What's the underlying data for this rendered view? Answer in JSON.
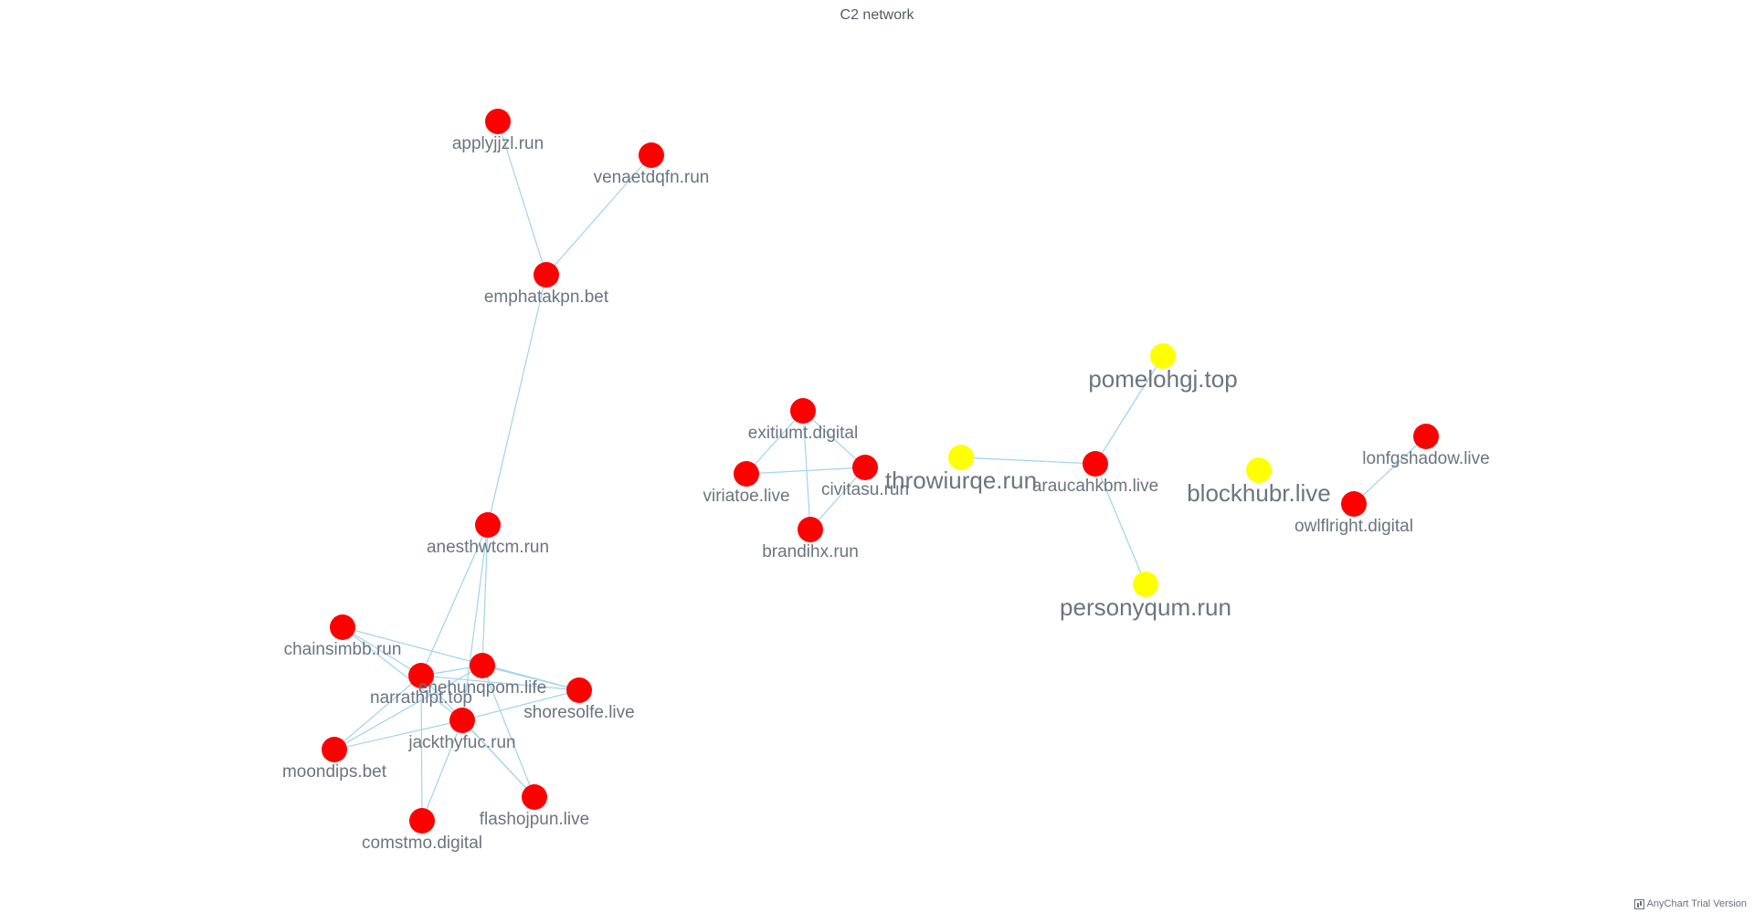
{
  "title": "C2 network",
  "credit": "AnyChart Trial Version",
  "colors": {
    "edge": "#9fd3f0",
    "node_red": "#ff0000",
    "node_yellow": "#ffff00",
    "label": "#6b7480"
  },
  "nodes": [
    {
      "id": "applyjjzl.run",
      "color": "red"
    },
    {
      "id": "venaetdqfn.run",
      "color": "red"
    },
    {
      "id": "emphatakpn.bet",
      "color": "red"
    },
    {
      "id": "anesthwtcm.run",
      "color": "red"
    },
    {
      "id": "chainsimbb.run",
      "color": "red"
    },
    {
      "id": "narrathlpt.top",
      "color": "red"
    },
    {
      "id": "enehunqpom.life",
      "color": "red"
    },
    {
      "id": "shoresolfe.live",
      "color": "red"
    },
    {
      "id": "jackthyfuc.run",
      "color": "red"
    },
    {
      "id": "moondips.bet",
      "color": "red"
    },
    {
      "id": "comstmo.digital",
      "color": "red"
    },
    {
      "id": "flashojpun.live",
      "color": "red"
    },
    {
      "id": "exitiumt.digital",
      "color": "red"
    },
    {
      "id": "viriatoe.live",
      "color": "red"
    },
    {
      "id": "civitasu.run",
      "color": "red"
    },
    {
      "id": "brandihx.run",
      "color": "red"
    },
    {
      "id": "throwiurqe.run",
      "color": "yellow"
    },
    {
      "id": "araucahkbm.live",
      "color": "red"
    },
    {
      "id": "pomelohgj.top",
      "color": "yellow"
    },
    {
      "id": "personyqum.run",
      "color": "yellow"
    },
    {
      "id": "blockhubr.live",
      "color": "yellow"
    },
    {
      "id": "lonfgshadow.live",
      "color": "red"
    },
    {
      "id": "owlflright.digital",
      "color": "red"
    }
  ],
  "edges": [
    [
      "applyjjzl.run",
      "emphatakpn.bet"
    ],
    [
      "venaetdqfn.run",
      "emphatakpn.bet"
    ],
    [
      "emphatakpn.bet",
      "anesthwtcm.run"
    ],
    [
      "anesthwtcm.run",
      "narrathlpt.top"
    ],
    [
      "anesthwtcm.run",
      "enehunqpom.life"
    ],
    [
      "anesthwtcm.run",
      "jackthyfuc.run"
    ],
    [
      "chainsimbb.run",
      "narrathlpt.top"
    ],
    [
      "chainsimbb.run",
      "jackthyfuc.run"
    ],
    [
      "chainsimbb.run",
      "shoresolfe.live"
    ],
    [
      "narrathlpt.top",
      "enehunqpom.life"
    ],
    [
      "narrathlpt.top",
      "shoresolfe.live"
    ],
    [
      "narrathlpt.top",
      "moondips.bet"
    ],
    [
      "narrathlpt.top",
      "comstmo.digital"
    ],
    [
      "narrathlpt.top",
      "flashojpun.live"
    ],
    [
      "enehunqpom.life",
      "shoresolfe.live"
    ],
    [
      "enehunqpom.life",
      "moondips.bet"
    ],
    [
      "enehunqpom.life",
      "flashojpun.live"
    ],
    [
      "shoresolfe.live",
      "jackthyfuc.run"
    ],
    [
      "jackthyfuc.run",
      "moondips.bet"
    ],
    [
      "jackthyfuc.run",
      "comstmo.digital"
    ],
    [
      "jackthyfuc.run",
      "flashojpun.live"
    ],
    [
      "exitiumt.digital",
      "viriatoe.live"
    ],
    [
      "exitiumt.digital",
      "civitasu.run"
    ],
    [
      "exitiumt.digital",
      "brandihx.run"
    ],
    [
      "viriatoe.live",
      "civitasu.run"
    ],
    [
      "civitasu.run",
      "brandihx.run"
    ],
    [
      "throwiurqe.run",
      "araucahkbm.live"
    ],
    [
      "araucahkbm.live",
      "pomelohgj.top"
    ],
    [
      "araucahkbm.live",
      "personyqum.run"
    ],
    [
      "lonfgshadow.live",
      "owlflright.digital"
    ]
  ]
}
